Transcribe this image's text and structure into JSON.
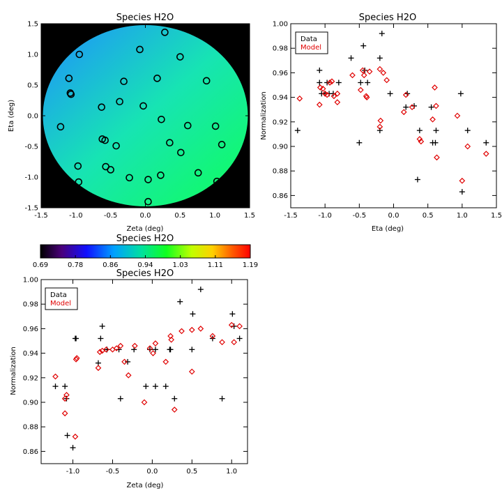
{
  "colors": {
    "data": "#000000",
    "model": "#e00000"
  },
  "chart_data": [
    {
      "type": "heatmap",
      "title": "Species H2O",
      "xlabel": "Zeta (deg)",
      "ylabel": "Eta (deg)",
      "xlim": [
        -1.5,
        1.5
      ],
      "ylim": [
        -1.5,
        1.5
      ],
      "xticks": [
        "-1.5",
        "-1.0",
        "-0.5",
        "0.0",
        "0.5",
        "1.0",
        "1.5"
      ],
      "yticks": [
        "-1.5",
        "-1.0",
        "-0.5",
        "0.0",
        "0.5",
        "1.0",
        "1.5"
      ],
      "field_radius": 1.47,
      "background": "#000000",
      "gradient": {
        "top_left": "#1f8fff",
        "mid": "#17e4b3",
        "bottom_right": "#10ff5a"
      },
      "points": [
        {
          "x": -0.95,
          "y": 1.0
        },
        {
          "x": 0.28,
          "y": 1.36
        },
        {
          "x": -0.08,
          "y": 1.08
        },
        {
          "x": 0.5,
          "y": 0.96
        },
        {
          "x": -1.1,
          "y": 0.61
        },
        {
          "x": 0.88,
          "y": 0.57
        },
        {
          "x": -1.08,
          "y": 0.37
        },
        {
          "x": -1.07,
          "y": 0.35
        },
        {
          "x": 0.17,
          "y": 0.61
        },
        {
          "x": -0.31,
          "y": 0.56
        },
        {
          "x": -0.63,
          "y": 0.14
        },
        {
          "x": -0.37,
          "y": 0.23
        },
        {
          "x": -0.03,
          "y": 0.16
        },
        {
          "x": -1.22,
          "y": -0.18
        },
        {
          "x": 0.23,
          "y": -0.06
        },
        {
          "x": 0.61,
          "y": -0.16
        },
        {
          "x": 1.01,
          "y": -0.17
        },
        {
          "x": -0.62,
          "y": -0.38
        },
        {
          "x": -0.58,
          "y": -0.4
        },
        {
          "x": -0.42,
          "y": -0.49
        },
        {
          "x": 0.35,
          "y": -0.44
        },
        {
          "x": 1.1,
          "y": -0.47
        },
        {
          "x": 0.51,
          "y": -0.6
        },
        {
          "x": -0.97,
          "y": -0.82
        },
        {
          "x": -0.57,
          "y": -0.83
        },
        {
          "x": -0.5,
          "y": -0.88
        },
        {
          "x": 0.76,
          "y": -0.93
        },
        {
          "x": 0.22,
          "y": -0.97
        },
        {
          "x": -0.23,
          "y": -1.01
        },
        {
          "x": 0.04,
          "y": -1.04
        },
        {
          "x": -0.96,
          "y": -1.08
        },
        {
          "x": 1.03,
          "y": -1.07
        },
        {
          "x": 0.04,
          "y": -1.4
        }
      ]
    },
    {
      "type": "scatter",
      "title": "Species H2O",
      "xlabel": "Eta (deg)",
      "ylabel": "Normalization",
      "xlim": [
        -1.5,
        1.5
      ],
      "ylim": [
        0.85,
        1.0
      ],
      "xticks": [
        "-1.5",
        "-1.0",
        "-0.5",
        "0.0",
        "0.5",
        "1.0",
        "1.5"
      ],
      "yticks": [
        "0.86",
        "0.88",
        "0.90",
        "0.92",
        "0.94",
        "0.96",
        "0.98",
        "1.00"
      ],
      "legend": [
        "Data",
        "Model"
      ],
      "legend_placement": "top-left",
      "series": [
        {
          "name": "Data",
          "marker": "plus",
          "points": [
            [
              -1.4,
              0.913
            ],
            [
              -1.08,
              0.962
            ],
            [
              -1.08,
              0.952
            ],
            [
              -1.05,
              0.943
            ],
            [
              -1.0,
              0.943
            ],
            [
              -0.97,
              0.952
            ],
            [
              -0.94,
              0.943
            ],
            [
              -0.88,
              0.943
            ],
            [
              -0.8,
              0.952
            ],
            [
              -0.62,
              0.972
            ],
            [
              -0.5,
              0.903
            ],
            [
              -0.48,
              0.952
            ],
            [
              -0.44,
              0.982
            ],
            [
              -0.42,
              0.962
            ],
            [
              -0.38,
              0.952
            ],
            [
              -0.2,
              0.913
            ],
            [
              -0.2,
              0.972
            ],
            [
              -0.17,
              0.992
            ],
            [
              -0.05,
              0.943
            ],
            [
              0.18,
              0.932
            ],
            [
              0.2,
              0.943
            ],
            [
              0.3,
              0.933
            ],
            [
              0.35,
              0.873
            ],
            [
              0.38,
              0.913
            ],
            [
              0.55,
              0.932
            ],
            [
              0.57,
              0.903
            ],
            [
              0.61,
              0.903
            ],
            [
              0.62,
              0.913
            ],
            [
              0.98,
              0.943
            ],
            [
              1.0,
              0.863
            ],
            [
              1.08,
              0.913
            ],
            [
              1.35,
              0.903
            ]
          ]
        },
        {
          "name": "Model",
          "marker": "diamond",
          "points": [
            [
              -1.37,
              0.939
            ],
            [
              -1.08,
              0.934
            ],
            [
              -1.07,
              0.948
            ],
            [
              -1.03,
              0.947
            ],
            [
              -1.0,
              0.943
            ],
            [
              -0.97,
              0.942
            ],
            [
              -0.93,
              0.952
            ],
            [
              -0.9,
              0.953
            ],
            [
              -0.87,
              0.941
            ],
            [
              -0.82,
              0.936
            ],
            [
              -0.82,
              0.943
            ],
            [
              -0.6,
              0.958
            ],
            [
              -0.48,
              0.946
            ],
            [
              -0.45,
              0.962
            ],
            [
              -0.43,
              0.958
            ],
            [
              -0.4,
              0.941
            ],
            [
              -0.39,
              0.94
            ],
            [
              -0.35,
              0.961
            ],
            [
              -0.2,
              0.963
            ],
            [
              -0.19,
              0.921
            ],
            [
              -0.2,
              0.916
            ],
            [
              -0.15,
              0.96
            ],
            [
              -0.1,
              0.954
            ],
            [
              0.15,
              0.928
            ],
            [
              0.18,
              0.942
            ],
            [
              0.27,
              0.932
            ],
            [
              0.38,
              0.906
            ],
            [
              0.4,
              0.904
            ],
            [
              0.57,
              0.922
            ],
            [
              0.6,
              0.948
            ],
            [
              0.62,
              0.933
            ],
            [
              0.63,
              0.891
            ],
            [
              0.93,
              0.925
            ],
            [
              1.0,
              0.872
            ],
            [
              1.08,
              0.9
            ],
            [
              1.35,
              0.894
            ]
          ]
        }
      ]
    },
    {
      "type": "colorbar",
      "title": "Species H2O",
      "ticks": [
        "0.69",
        "0.78",
        "0.86",
        "0.94",
        "1.03",
        "1.11",
        "1.19"
      ],
      "range": [
        0.69,
        1.19
      ]
    },
    {
      "type": "scatter",
      "title": "Species H2O",
      "xlabel": "Zeta (deg)",
      "ylabel": "Normalization",
      "xlim": [
        -1.4,
        1.2
      ],
      "ylim": [
        0.85,
        1.0
      ],
      "xticks": [
        "-1.0",
        "-0.5",
        "0.0",
        "0.5",
        "1.0"
      ],
      "yticks": [
        "0.86",
        "0.88",
        "0.90",
        "0.92",
        "0.94",
        "0.96",
        "0.98",
        "1.00"
      ],
      "legend": [
        "Data",
        "Model"
      ],
      "legend_placement": "top-left",
      "series": [
        {
          "name": "Data",
          "marker": "plus",
          "points": [
            [
              -1.22,
              0.913
            ],
            [
              -1.1,
              0.913
            ],
            [
              -1.08,
              0.903
            ],
            [
              -1.07,
              0.873
            ],
            [
              -1.0,
              0.863
            ],
            [
              -0.97,
              0.952
            ],
            [
              -0.96,
              0.952
            ],
            [
              -0.68,
              0.932
            ],
            [
              -0.65,
              0.952
            ],
            [
              -0.63,
              0.962
            ],
            [
              -0.57,
              0.943
            ],
            [
              -0.42,
              0.943
            ],
            [
              -0.4,
              0.903
            ],
            [
              -0.31,
              0.933
            ],
            [
              -0.23,
              0.943
            ],
            [
              -0.08,
              0.913
            ],
            [
              -0.03,
              0.943
            ],
            [
              0.04,
              0.913
            ],
            [
              0.04,
              0.943
            ],
            [
              0.17,
              0.913
            ],
            [
              0.22,
              0.943
            ],
            [
              0.23,
              0.943
            ],
            [
              0.28,
              0.903
            ],
            [
              0.35,
              0.982
            ],
            [
              0.5,
              0.943
            ],
            [
              0.51,
              0.972
            ],
            [
              0.61,
              0.992
            ],
            [
              0.76,
              0.952
            ],
            [
              0.88,
              0.903
            ],
            [
              1.01,
              0.972
            ],
            [
              1.03,
              0.962
            ],
            [
              1.1,
              0.952
            ]
          ]
        },
        {
          "name": "Model",
          "marker": "diamond",
          "points": [
            [
              -1.22,
              0.921
            ],
            [
              -1.1,
              0.903
            ],
            [
              -1.08,
              0.906
            ],
            [
              -1.1,
              0.891
            ],
            [
              -0.97,
              0.872
            ],
            [
              -0.96,
              0.935
            ],
            [
              -0.95,
              0.936
            ],
            [
              -0.68,
              0.928
            ],
            [
              -0.66,
              0.941
            ],
            [
              -0.63,
              0.942
            ],
            [
              -0.58,
              0.943
            ],
            [
              -0.5,
              0.943
            ],
            [
              -0.45,
              0.944
            ],
            [
              -0.4,
              0.946
            ],
            [
              -0.35,
              0.933
            ],
            [
              -0.3,
              0.922
            ],
            [
              -0.22,
              0.946
            ],
            [
              -0.1,
              0.9
            ],
            [
              -0.03,
              0.944
            ],
            [
              0.01,
              0.94
            ],
            [
              0.04,
              0.948
            ],
            [
              0.17,
              0.933
            ],
            [
              0.23,
              0.954
            ],
            [
              0.24,
              0.951
            ],
            [
              0.28,
              0.894
            ],
            [
              0.37,
              0.958
            ],
            [
              0.5,
              0.925
            ],
            [
              0.5,
              0.959
            ],
            [
              0.61,
              0.96
            ],
            [
              0.76,
              0.954
            ],
            [
              0.88,
              0.949
            ],
            [
              1.0,
              0.963
            ],
            [
              1.03,
              0.949
            ],
            [
              1.1,
              0.962
            ]
          ]
        }
      ]
    }
  ]
}
